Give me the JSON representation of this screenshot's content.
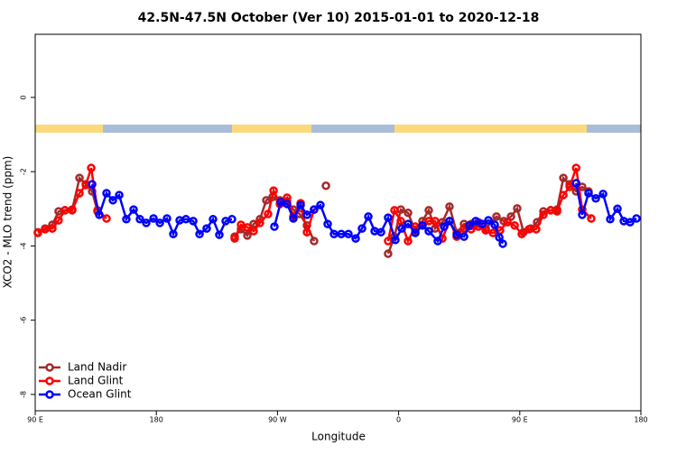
{
  "chart_data": {
    "type": "line",
    "title": "42.5N-47.5N October (Ver 10)   2015-01-01 to 2020-12-18",
    "x_label": "Longitude",
    "y_label": "XCO2 - MLO trend (ppm)",
    "xlim": [
      90,
      540
    ],
    "ylim": [
      -8.44,
      1.7
    ],
    "xticks": [
      {
        "value": 90,
        "label": "90 E"
      },
      180,
      {
        "value": 270,
        "label": "90 W"
      },
      {
        "value": 360,
        "label": "0"
      },
      {
        "value": 450,
        "label": "90 E"
      },
      {
        "value": 540,
        "label": "180"
      }
    ],
    "yticks": [
      0,
      -2,
      -4,
      -6,
      -8
    ],
    "legend": "bottom-left",
    "series": [
      {
        "name": "Land Nadir",
        "color": "#a52a2a",
        "x": [
          92.0,
          97.4,
          102.7,
          107.4,
          112.1,
          117.5,
          122.9,
          127.6,
          132.3,
          136.3,
          null,
          238.2,
          242.9,
          247.6,
          252.3,
          257.0,
          261.7,
          266.4,
          271.8,
          277.1,
          281.8,
          286.5,
          291.9,
          297.2,
          null,
          306.0,
          null,
          352.2,
          356.9,
          361.6,
          367.0,
          372.4,
          377.7,
          382.4,
          387.1,
          392.5,
          397.8,
          403.2,
          408.6,
          413.9,
          419.3,
          424.7,
          432.7,
          438.1,
          443.5,
          448.1,
          452.8,
          458.2,
          462.9,
          467.6,
          473.0,
          477.7,
          482.4,
          487.1,
          491.9,
          496.4,
          501.1
        ],
        "values": [
          -3.63,
          -3.53,
          -3.43,
          -3.07,
          -3.04,
          -3.02,
          -2.17,
          -2.34,
          -2.53,
          -3.07,
          null,
          -3.75,
          -3.55,
          -3.72,
          -3.41,
          -3.28,
          -2.77,
          -2.68,
          -2.77,
          -2.8,
          -3.02,
          -3.14,
          -3.45,
          -3.87,
          null,
          -2.38,
          null,
          -4.21,
          -3.75,
          -3.02,
          -3.11,
          -3.6,
          -3.33,
          -3.04,
          -3.53,
          -3.36,
          -2.94,
          -3.65,
          -3.41,
          -3.41,
          -3.36,
          -3.53,
          -3.21,
          -3.33,
          -3.21,
          -2.99,
          -3.63,
          -3.53,
          -3.36,
          -3.07,
          -3.04,
          -3.02,
          -2.17,
          -2.34,
          -2.53,
          -2.41,
          -2.53
        ]
      },
      {
        "name": "Land Glint",
        "color": "#ff0000",
        "x": [
          92.0,
          97.4,
          102.7,
          107.4,
          112.1,
          117.5,
          122.9,
          127.6,
          131.6,
          136.3,
          143.0,
          null,
          238.2,
          242.9,
          247.6,
          252.3,
          257.0,
          263.0,
          267.1,
          271.8,
          277.1,
          281.8,
          287.2,
          291.9,
          297.2,
          null,
          352.2,
          356.9,
          361.6,
          367.0,
          372.4,
          377.7,
          382.4,
          387.1,
          392.5,
          397.8,
          403.2,
          408.6,
          413.9,
          419.3,
          424.7,
          430.1,
          435.4,
          440.8,
          446.2,
          451.5,
          456.9,
          462.2,
          467.6,
          473.0,
          477.7,
          482.4,
          487.1,
          491.9,
          496.4,
          503.1
        ],
        "values": [
          -3.65,
          -3.55,
          -3.53,
          -3.31,
          -3.04,
          -3.04,
          -2.58,
          -2.36,
          -1.9,
          -3.04,
          -3.26,
          null,
          -3.8,
          -3.43,
          -3.5,
          -3.6,
          -3.38,
          -3.14,
          -2.51,
          -2.87,
          -2.7,
          -3.21,
          -2.85,
          -3.63,
          -3.02,
          null,
          -3.87,
          -3.04,
          -3.33,
          -3.87,
          -3.48,
          -3.45,
          -3.33,
          -3.33,
          -3.8,
          -3.33,
          -3.75,
          -3.53,
          -3.55,
          -3.48,
          -3.58,
          -3.65,
          -3.58,
          -3.36,
          -3.45,
          -3.68,
          -3.55,
          -3.55,
          -3.16,
          -3.04,
          -3.07,
          -2.63,
          -2.41,
          -1.9,
          -3.02,
          -3.26
        ]
      },
      {
        "name": "Ocean Glint",
        "color": "#0000ff",
        "x": [
          132.3,
          137.6,
          143.0,
          147.7,
          152.4,
          157.7,
          163.1,
          167.8,
          172.5,
          177.9,
          182.6,
          187.9,
          192.6,
          197.3,
          202.0,
          207.4,
          212.1,
          217.4,
          222.1,
          226.8,
          231.5,
          236.2,
          null,
          267.7,
          272.4,
          277.1,
          281.8,
          287.2,
          291.9,
          297.2,
          301.9,
          307.3,
          312.0,
          317.4,
          322.7,
          328.1,
          332.8,
          337.5,
          342.2,
          346.9,
          352.2,
          357.6,
          362.3,
          367.0,
          372.4,
          377.7,
          382.4,
          389.1,
          393.8,
          397.8,
          403.2,
          408.6,
          412.6,
          417.3,
          422.0,
          426.7,
          431.4,
          434.8,
          437.4,
          null,
          491.9,
          496.4,
          501.1,
          506.5,
          511.9,
          517.2,
          522.6,
          527.3,
          532.0,
          536.7
        ],
        "values": [
          -2.34,
          -3.16,
          -2.58,
          -2.77,
          -2.63,
          -3.28,
          -3.02,
          -3.28,
          -3.38,
          -3.26,
          -3.38,
          -3.26,
          -3.68,
          -3.31,
          -3.28,
          -3.33,
          -3.68,
          -3.53,
          -3.28,
          -3.7,
          -3.33,
          -3.28,
          null,
          -3.48,
          -2.82,
          -2.87,
          -3.26,
          -2.9,
          -3.16,
          -3.02,
          -2.9,
          -3.41,
          -3.68,
          -3.68,
          -3.68,
          -3.8,
          -3.53,
          -3.21,
          -3.6,
          -3.63,
          -3.24,
          -3.84,
          -3.53,
          -3.41,
          -3.65,
          -3.45,
          -3.6,
          -3.87,
          -3.48,
          -3.33,
          -3.7,
          -3.75,
          -3.45,
          -3.33,
          -3.41,
          -3.31,
          -3.43,
          -3.77,
          -3.94,
          null,
          -2.31,
          -3.16,
          -2.58,
          -2.72,
          -2.6,
          -3.28,
          -3.0,
          -3.33,
          -3.36,
          -3.26
        ]
      }
    ]
  }
}
